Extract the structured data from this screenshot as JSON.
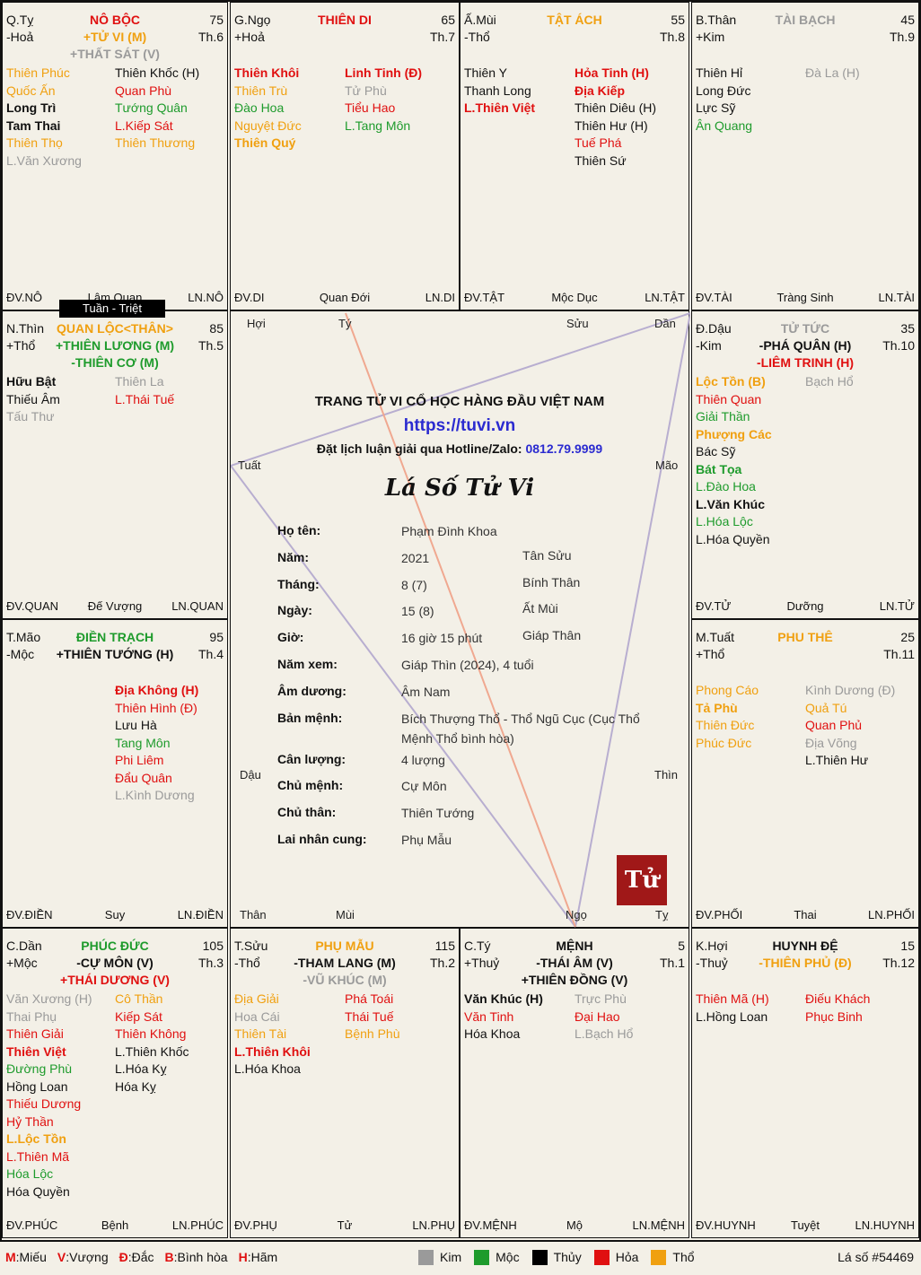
{
  "top_label": "Tuần - Triệt",
  "cells": [
    {
      "id": "ty",
      "branch": "Q.Tỵ",
      "elem": "-Hoả",
      "name": "NÔ BỘC",
      "name_class": "hoa",
      "age": "75",
      "month": "Th.6",
      "main": [
        {
          "t": "+TỬ VI (M)",
          "c": "tho"
        },
        {
          "t": "+THẤT SÁT (V)",
          "c": "kim"
        }
      ],
      "left": [
        {
          "t": "Thiên Phúc",
          "c": "tho"
        },
        {
          "t": "Quốc Ấn",
          "c": "tho"
        },
        {
          "t": "Long Trì",
          "c": "thuy b"
        },
        {
          "t": "Tam Thai",
          "c": "thuy b"
        },
        {
          "t": "Thiên Thọ",
          "c": "tho"
        },
        {
          "t": "L.Văn Xương",
          "c": "kim"
        }
      ],
      "right": [
        {
          "t": "Thiên Khốc (H)",
          "c": "thuy"
        },
        {
          "t": "Quan Phù",
          "c": "hoa"
        },
        {
          "t": "Tướng Quân",
          "c": "moc"
        },
        {
          "t": "L.Kiếp Sát",
          "c": "hoa"
        },
        {
          "t": "Thiên Thương",
          "c": "tho"
        }
      ],
      "dv": "ĐV.NÔ",
      "stage": "Lâm Quan",
      "ln": "LN.NÔ"
    },
    {
      "id": "ngo",
      "branch": "G.Ngọ",
      "elem": "+Hoả",
      "name": "THIÊN DI",
      "name_class": "hoa",
      "age": "65",
      "month": "Th.7",
      "main": [],
      "left": [
        {
          "t": "Thiên Khôi",
          "c": "hoa b"
        },
        {
          "t": "Thiên Trù",
          "c": "tho"
        },
        {
          "t": "Đào Hoa",
          "c": "moc"
        },
        {
          "t": "Nguyệt Đức",
          "c": "tho"
        },
        {
          "t": "Thiên Quý",
          "c": "tho b"
        }
      ],
      "right": [
        {
          "t": "Linh Tinh (Đ)",
          "c": "hoa b"
        },
        {
          "t": "Tử Phù",
          "c": "kim"
        },
        {
          "t": "Tiểu Hao",
          "c": "hoa"
        },
        {
          "t": "L.Tang Môn",
          "c": "moc"
        }
      ],
      "dv": "ĐV.DI",
      "stage": "Quan Đới",
      "ln": "LN.DI"
    },
    {
      "id": "mui",
      "branch": "Ấ.Mùi",
      "elem": "-Thổ",
      "name": "TẬT ÁCH",
      "name_class": "tho",
      "age": "55",
      "month": "Th.8",
      "main": [],
      "left": [
        {
          "t": "Thiên Y",
          "c": "thuy"
        },
        {
          "t": "Thanh Long",
          "c": "thuy"
        },
        {
          "t": "L.Thiên Việt",
          "c": "hoa b"
        }
      ],
      "right": [
        {
          "t": "Hỏa Tinh (H)",
          "c": "hoa b"
        },
        {
          "t": "Địa Kiếp",
          "c": "hoa b"
        },
        {
          "t": "Thiên Diêu (H)",
          "c": "thuy"
        },
        {
          "t": "Thiên Hư (H)",
          "c": "thuy"
        },
        {
          "t": "Tuế Phá",
          "c": "hoa"
        },
        {
          "t": "Thiên Sứ",
          "c": "thuy"
        }
      ],
      "dv": "ĐV.TẬT",
      "stage": "Mộc Dục",
      "ln": "LN.TẬT"
    },
    {
      "id": "than",
      "branch": "B.Thân",
      "elem": "+Kim",
      "name": "TÀI BẠCH",
      "name_class": "kim",
      "age": "45",
      "month": "Th.9",
      "main": [],
      "left": [
        {
          "t": "Thiên Hỉ",
          "c": "thuy"
        },
        {
          "t": "Long Đức",
          "c": "thuy"
        },
        {
          "t": "Lực Sỹ",
          "c": "thuy"
        },
        {
          "t": "Ân Quang",
          "c": "moc"
        }
      ],
      "right": [
        {
          "t": "Đà La (H)",
          "c": "kim"
        }
      ],
      "dv": "ĐV.TÀI",
      "stage": "Tràng Sinh",
      "ln": "LN.TÀI"
    },
    {
      "id": "thin",
      "branch": "N.Thìn",
      "elem": "+Thổ",
      "name": "QUAN LỘC<THÂN>",
      "name_class": "tho",
      "age": "85",
      "month": "Th.5",
      "main": [
        {
          "t": "+THIÊN LƯƠNG (M)",
          "c": "moc"
        },
        {
          "t": "-THIÊN CƠ (M)",
          "c": "moc"
        }
      ],
      "left": [
        {
          "t": "Hữu Bật",
          "c": "thuy b"
        },
        {
          "t": "Thiếu Âm",
          "c": "thuy"
        },
        {
          "t": "Tấu Thư",
          "c": "kim"
        }
      ],
      "right": [
        {
          "t": "Thiên La",
          "c": "kim"
        },
        {
          "t": "L.Thái Tuế",
          "c": "hoa"
        }
      ],
      "dv": "ĐV.QUAN",
      "stage": "Đế Vượng",
      "ln": "LN.QUAN"
    },
    {
      "id": "dau",
      "branch": "Đ.Dậu",
      "elem": "-Kim",
      "name": "TỬ TỨC",
      "name_class": "kim",
      "age": "35",
      "month": "Th.10",
      "main": [
        {
          "t": "-PHÁ QUÂN (H)",
          "c": "thuy"
        },
        {
          "t": "-LIÊM TRINH (H)",
          "c": "hoa"
        }
      ],
      "left": [
        {
          "t": "Lộc Tồn (B)",
          "c": "tho b"
        },
        {
          "t": "Thiên Quan",
          "c": "hoa"
        },
        {
          "t": "Giải Thần",
          "c": "moc"
        },
        {
          "t": "Phượng Các",
          "c": "tho b"
        },
        {
          "t": "Bác Sỹ",
          "c": "thuy"
        },
        {
          "t": "Bát Tọa",
          "c": "moc b"
        },
        {
          "t": "L.Đào Hoa",
          "c": "moc"
        },
        {
          "t": "L.Văn Khúc",
          "c": "thuy b"
        },
        {
          "t": "L.Hóa Lộc",
          "c": "moc"
        },
        {
          "t": "L.Hóa Quyền",
          "c": "thuy"
        }
      ],
      "right": [
        {
          "t": "Bạch Hổ",
          "c": "kim"
        }
      ],
      "dv": "ĐV.TỬ",
      "stage": "Dưỡng",
      "ln": "LN.TỬ"
    },
    {
      "id": "mao",
      "branch": "T.Mão",
      "elem": "-Mộc",
      "name": "ĐIỀN TRẠCH",
      "name_class": "moc",
      "age": "95",
      "month": "Th.4",
      "main": [
        {
          "t": "+THIÊN TƯỚNG (H)",
          "c": "thuy"
        }
      ],
      "left": [],
      "right": [
        {
          "t": "Địa Không (H)",
          "c": "hoa b"
        },
        {
          "t": "Thiên Hình (Đ)",
          "c": "hoa"
        },
        {
          "t": "Lưu Hà",
          "c": "thuy"
        },
        {
          "t": "Tang Môn",
          "c": "moc"
        },
        {
          "t": "Phi Liêm",
          "c": "hoa"
        },
        {
          "t": "Đẩu Quân",
          "c": "hoa"
        },
        {
          "t": "L.Kình Dương",
          "c": "kim"
        }
      ],
      "dv": "ĐV.ĐIỀN",
      "stage": "Suy",
      "ln": "LN.ĐIỀN"
    },
    {
      "id": "tuat",
      "branch": "M.Tuất",
      "elem": "+Thổ",
      "name": "PHU THÊ",
      "name_class": "tho",
      "age": "25",
      "month": "Th.11",
      "main": [],
      "left": [
        {
          "t": "Phong Cáo",
          "c": "tho"
        },
        {
          "t": "Tả Phù",
          "c": "tho b"
        },
        {
          "t": "Thiên Đức",
          "c": "tho"
        },
        {
          "t": "Phúc Đức",
          "c": "tho"
        }
      ],
      "right": [
        {
          "t": "Kình Dương (Đ)",
          "c": "kim"
        },
        {
          "t": "Quả Tú",
          "c": "tho"
        },
        {
          "t": "Quan Phủ",
          "c": "hoa"
        },
        {
          "t": "Địa Võng",
          "c": "kim"
        },
        {
          "t": "L.Thiên Hư",
          "c": "thuy"
        }
      ],
      "dv": "ĐV.PHỐI",
      "stage": "Thai",
      "ln": "LN.PHỐI"
    },
    {
      "id": "dan",
      "branch": "C.Dần",
      "elem": "+Mộc",
      "name": "PHÚC ĐỨC",
      "name_class": "moc",
      "age": "105",
      "month": "Th.3",
      "main": [
        {
          "t": "-CỰ MÔN (V)",
          "c": "thuy"
        },
        {
          "t": "+THÁI DƯƠNG (V)",
          "c": "hoa"
        }
      ],
      "left": [
        {
          "t": "Văn Xương (H)",
          "c": "kim"
        },
        {
          "t": "Thai Phụ",
          "c": "kim"
        },
        {
          "t": "Thiên Giải",
          "c": "hoa"
        },
        {
          "t": "Thiên Việt",
          "c": "hoa b"
        },
        {
          "t": "Đường Phù",
          "c": "moc"
        },
        {
          "t": "Hồng Loan",
          "c": "thuy"
        },
        {
          "t": "Thiếu Dương",
          "c": "hoa"
        },
        {
          "t": "Hỷ Thần",
          "c": "hoa"
        },
        {
          "t": "L.Lộc Tồn",
          "c": "tho b"
        },
        {
          "t": "L.Thiên Mã",
          "c": "hoa"
        },
        {
          "t": "Hóa Lộc",
          "c": "moc"
        },
        {
          "t": "Hóa Quyền",
          "c": "thuy"
        }
      ],
      "right": [
        {
          "t": "Cô Thần",
          "c": "tho"
        },
        {
          "t": "Kiếp Sát",
          "c": "hoa"
        },
        {
          "t": "Thiên Không",
          "c": "hoa"
        },
        {
          "t": "L.Thiên Khốc",
          "c": "thuy"
        },
        {
          "t": "L.Hóa Kỵ",
          "c": "thuy"
        },
        {
          "t": "Hóa Kỵ",
          "c": "thuy"
        }
      ],
      "dv": "ĐV.PHÚC",
      "stage": "Bệnh",
      "ln": "LN.PHÚC"
    },
    {
      "id": "suu",
      "branch": "T.Sửu",
      "elem": "-Thổ",
      "name": "PHỤ MẪU",
      "name_class": "tho",
      "age": "115",
      "month": "Th.2",
      "main": [
        {
          "t": "-THAM LANG (M)",
          "c": "thuy"
        },
        {
          "t": "-VŨ KHÚC (M)",
          "c": "kim"
        }
      ],
      "left": [
        {
          "t": "Địa Giải",
          "c": "tho"
        },
        {
          "t": "Hoa Cái",
          "c": "kim"
        },
        {
          "t": "Thiên Tài",
          "c": "tho"
        },
        {
          "t": "L.Thiên Khôi",
          "c": "hoa b"
        },
        {
          "t": "L.Hóa Khoa",
          "c": "thuy"
        }
      ],
      "right": [
        {
          "t": "Phá Toái",
          "c": "hoa"
        },
        {
          "t": "Thái Tuế",
          "c": "hoa"
        },
        {
          "t": "Bệnh Phù",
          "c": "tho"
        }
      ],
      "dv": "ĐV.PHỤ",
      "stage": "Tử",
      "ln": "LN.PHỤ"
    },
    {
      "id": "ti",
      "branch": "C.Tý",
      "elem": "+Thuỷ",
      "name": "MỆNH",
      "name_class": "thuy",
      "age": "5",
      "month": "Th.1",
      "main": [
        {
          "t": "-THÁI ÂM (V)",
          "c": "thuy"
        },
        {
          "t": "+THIÊN ĐỒNG (V)",
          "c": "thuy"
        }
      ],
      "left": [
        {
          "t": "Văn Khúc (H)",
          "c": "thuy b"
        },
        {
          "t": "Văn Tinh",
          "c": "hoa"
        },
        {
          "t": "Hóa Khoa",
          "c": "thuy"
        }
      ],
      "right": [
        {
          "t": "Trực Phù",
          "c": "kim"
        },
        {
          "t": "Đại Hao",
          "c": "hoa"
        },
        {
          "t": "L.Bạch Hổ",
          "c": "kim"
        }
      ],
      "dv": "ĐV.MỆNH",
      "stage": "Mộ",
      "ln": "LN.MỆNH"
    },
    {
      "id": "hoi",
      "branch": "K.Hợi",
      "elem": "-Thuỷ",
      "name": "HUYNH ĐỆ",
      "name_class": "thuy",
      "age": "15",
      "month": "Th.12",
      "main": [
        {
          "t": "-THIÊN PHỦ (Đ)",
          "c": "tho"
        }
      ],
      "left": [
        {
          "t": "Thiên Mã (H)",
          "c": "hoa"
        },
        {
          "t": "L.Hồng Loan",
          "c": "thuy"
        }
      ],
      "right": [
        {
          "t": "Điếu Khách",
          "c": "hoa"
        },
        {
          "t": "Phục Binh",
          "c": "hoa"
        }
      ],
      "dv": "ĐV.HUYNH",
      "stage": "Tuyệt",
      "ln": "LN.HUYNH"
    }
  ],
  "center": {
    "branches": {
      "hoi": "Hợi",
      "ty": "Tý",
      "suu": "Sửu",
      "dan": "Dần",
      "tuat": "Tuất",
      "mao": "Mão",
      "dau": "Dậu",
      "thin": "Thìn",
      "than": "Thân",
      "mui": "Mùi",
      "ngo": "Ngọ",
      "ti": "Tỵ"
    },
    "site_title": "TRANG TỬ VI CỔ HỌC HÀNG ĐẦU VIỆT NAM",
    "site_url": "https://tuvi.vn",
    "hotline_label": "Đặt lịch luận giải qua Hotline/Zalo:",
    "hotline": "0812.79.9999",
    "chart_title": "Lá Số Tử Vi",
    "info": [
      {
        "label": "Họ tên:",
        "v1": "Phạm Đình Khoa",
        "v2": ""
      },
      {
        "label": "Năm:",
        "v1": "2021",
        "v2": "Tân Sửu"
      },
      {
        "label": "Tháng:",
        "v1": "8 (7)",
        "v2": "Bính Thân"
      },
      {
        "label": "Ngày:",
        "v1": "15 (8)",
        "v2": "Ất Mùi"
      },
      {
        "label": "Giờ:",
        "v1": "16 giờ 15 phút",
        "v2": "Giáp Thân"
      },
      {
        "label": "Năm xem:",
        "v1": "Giáp Thìn (2024), 4 tuổi",
        "v2": ""
      },
      {
        "label": "Âm dương:",
        "v1": "Âm Nam",
        "v2": ""
      },
      {
        "label": "Bản mệnh:",
        "v1": "Bích Thượng Thổ - Thổ Ngũ Cục (Cục Thổ Mệnh Thổ bình hòa)",
        "v2": ""
      },
      {
        "label": "Cân lượng:",
        "v1": "4 lượng",
        "v2": ""
      },
      {
        "label": "Chủ mệnh:",
        "v1": "Cự Môn",
        "v2": ""
      },
      {
        "label": "Chủ thân:",
        "v1": "Thiên Tướng",
        "v2": ""
      },
      {
        "label": "Lai nhân cung:",
        "v1": "Phụ Mẫu",
        "v2": ""
      }
    ],
    "seal_text": "Tử"
  },
  "legend": {
    "abbr": [
      {
        "k": "M",
        "v": ":Miếu"
      },
      {
        "k": "V",
        "v": ":Vượng"
      },
      {
        "k": "Đ",
        "v": ":Đắc"
      },
      {
        "k": "B",
        "v": ":Bình hòa"
      },
      {
        "k": "H",
        "v": ":Hãm"
      }
    ],
    "elements": [
      {
        "name": "Kim",
        "color": "#9a9a9a"
      },
      {
        "name": "Mộc",
        "color": "#1e9b2c"
      },
      {
        "name": "Thủy",
        "color": "#000000"
      },
      {
        "name": "Hỏa",
        "color": "#e01010"
      },
      {
        "name": "Thổ",
        "color": "#f0a010"
      }
    ],
    "id_label": "Lá số #54469"
  }
}
